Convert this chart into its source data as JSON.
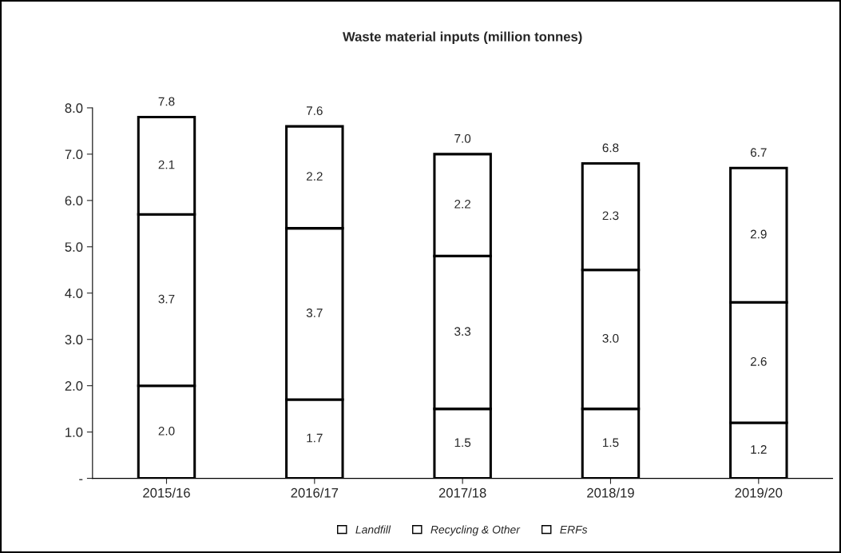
{
  "chart_data": {
    "type": "bar",
    "title": "Waste material inputs (million tonnes)",
    "categories": [
      "2015/16",
      "2016/17",
      "2017/18",
      "2018/19",
      "2019/20"
    ],
    "stacked": true,
    "series": [
      {
        "name": "Landfill",
        "color": "#ffffff",
        "values": [
          2.0,
          1.7,
          1.5,
          1.5,
          1.2
        ],
        "value_labels": [
          "2.0",
          "1.7",
          "1.5",
          "1.5",
          "1.2"
        ]
      },
      {
        "name": "Recycling & Other",
        "color": "#ffffff",
        "values": [
          3.7,
          3.7,
          3.3,
          3.0,
          2.6
        ],
        "value_labels": [
          "3.7",
          "3.7",
          "3.3",
          "3.0",
          "2.6"
        ]
      },
      {
        "name": "ERFs",
        "color": "#ffffff",
        "values": [
          2.1,
          2.2,
          2.2,
          2.3,
          2.9
        ],
        "value_labels": [
          "2.1",
          "2.2",
          "2.2",
          "2.3",
          "2.9"
        ]
      }
    ],
    "totals": [
      "7.8",
      "7.6",
      "7.0",
      "6.8",
      "6.7"
    ],
    "ylim": [
      0,
      8.0
    ],
    "yticks": [
      {
        "value": 0,
        "label": "-"
      },
      {
        "value": 1,
        "label": "1.0"
      },
      {
        "value": 2,
        "label": "2.0"
      },
      {
        "value": 3,
        "label": "3.0"
      },
      {
        "value": 4,
        "label": "4.0"
      },
      {
        "value": 5,
        "label": "5.0"
      },
      {
        "value": 6,
        "label": "6.0"
      },
      {
        "value": 7,
        "label": "7.0"
      },
      {
        "value": 8,
        "label": "8.0"
      }
    ],
    "grid": false,
    "legend": "bottom"
  }
}
